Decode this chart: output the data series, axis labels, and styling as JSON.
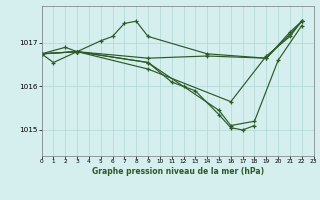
{
  "title": "Graphe pression niveau de la mer (hPa)",
  "bg_color": "#d4efee",
  "grid_color": "#aed8d5",
  "line_color": "#2d5a27",
  "xlim": [
    0,
    23
  ],
  "ylim": [
    1014.4,
    1017.85
  ],
  "yticks": [
    1015,
    1016,
    1017
  ],
  "xticks": [
    0,
    1,
    2,
    3,
    4,
    5,
    6,
    7,
    8,
    9,
    10,
    11,
    12,
    13,
    14,
    15,
    16,
    17,
    18,
    19,
    20,
    21,
    22,
    23
  ],
  "series": [
    {
      "x": [
        0,
        1,
        3,
        5,
        6,
        7,
        8,
        9,
        14,
        19,
        21,
        22
      ],
      "y": [
        1016.75,
        1016.55,
        1016.8,
        1017.05,
        1017.15,
        1017.45,
        1017.5,
        1017.15,
        1016.75,
        1016.65,
        1017.25,
        1017.5
      ]
    },
    {
      "x": [
        0,
        3,
        9,
        14,
        19,
        21,
        22
      ],
      "y": [
        1016.75,
        1016.8,
        1016.65,
        1016.7,
        1016.65,
        1017.2,
        1017.5
      ]
    },
    {
      "x": [
        0,
        2,
        3,
        9,
        11,
        13,
        15,
        16,
        17,
        18
      ],
      "y": [
        1016.75,
        1016.9,
        1016.8,
        1016.55,
        1016.1,
        1015.9,
        1015.35,
        1015.05,
        1015.0,
        1015.1
      ]
    },
    {
      "x": [
        0,
        3,
        9,
        12,
        15,
        16,
        18,
        20,
        22
      ],
      "y": [
        1016.75,
        1016.8,
        1016.55,
        1016.0,
        1015.45,
        1015.1,
        1015.2,
        1016.6,
        1017.4
      ]
    },
    {
      "x": [
        0,
        3,
        9,
        16,
        19,
        21,
        22
      ],
      "y": [
        1016.75,
        1016.8,
        1016.4,
        1015.65,
        1016.7,
        1017.15,
        1017.5
      ]
    }
  ]
}
